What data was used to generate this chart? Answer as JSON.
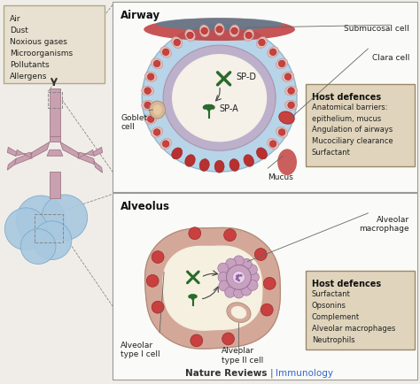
{
  "bg_color": "#f0ede8",
  "title_footer_left": "Nature Reviews",
  "title_footer_right": "Immunology",
  "footer_color_left": "#333333",
  "footer_color_right": "#3366cc",
  "box_inhaled_items": [
    "Air",
    "Dust",
    "Noxious gases",
    "Microorganisms",
    "Pollutants",
    "Allergens"
  ],
  "box_inhaled_bg": "#e8e0d0",
  "box_inhaled_border": "#b0a888",
  "airway_label": "Airway",
  "airway_submucosal": "Submucosal cell",
  "airway_clara": "Clara cell",
  "airway_goblet": "Goblet\ncell",
  "airway_mucus": "Mucus",
  "airway_spd": "SP-D",
  "airway_spa": "SP-A",
  "host_def_airway_title": "Host defences",
  "host_def_airway_items": [
    "Anatomical barriers:",
    "epithelium, mucus",
    "Angulation of airways",
    "Mucociliary clearance",
    "Surfactant"
  ],
  "host_def_bg": "#e0d4bc",
  "host_def_border": "#9a8868",
  "alveolus_label": "Alveolus",
  "alveolus_macro": "Alveolar\nmacrophage",
  "alveolus_type1": "Alveolar\ntype I cell",
  "alveolus_type2": "Alveolar\ntype II cell",
  "host_def_alv_title": "Host defences",
  "host_def_alv_items": [
    "Surfactant",
    "Opsonins",
    "Complement",
    "Alveolar macrophages",
    "Neutrophils"
  ],
  "airway_blue_color": "#b8d4e8",
  "airway_cell_body": "#e8b8b0",
  "airway_cell_nucleus": "#c84040",
  "airway_mucosa_color": "#c090b8",
  "airway_lumen_color": "#f5f0e8",
  "airway_red_tissue": "#c03030",
  "airway_teal_tissue": "#5090a0",
  "goblet_color": "#d4b898",
  "alv_wall_color": "#d4a898",
  "alv_lumen_color": "#f5f0e0",
  "alv_cell_red": "#c84040",
  "alv_macro_body": "#c8a0c0",
  "alv_macro_center": "#e8d0e8",
  "sp_color": "#2a6a2a",
  "bronchial_color": "#c8a0b0",
  "bronchial_edge": "#a07888",
  "alveoli_blue_color": "#a8c8e0",
  "alveoli_blue_edge": "#78a8c8",
  "panel_border": "#999999",
  "panel_bg": "#fafaf8",
  "label_color": "#222222",
  "arrow_color": "#444444"
}
